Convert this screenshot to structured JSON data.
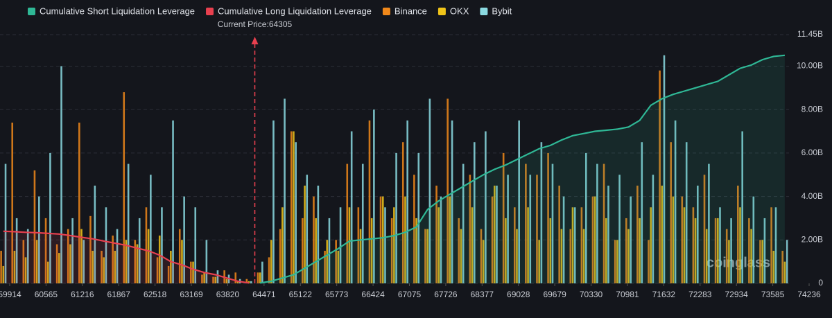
{
  "chart_data": {
    "type": "bar",
    "x": [
      59800,
      60000,
      60200,
      60400,
      60600,
      60800,
      61000,
      61200,
      61400,
      61600,
      61800,
      62000,
      62200,
      62400,
      62600,
      62800,
      63000,
      63200,
      63400,
      63600,
      63800,
      64000,
      64200,
      64400,
      64600,
      64800,
      65000,
      65200,
      65400,
      65600,
      65800,
      66000,
      66200,
      66400,
      66600,
      66800,
      67000,
      67200,
      67400,
      67600,
      67800,
      68000,
      68200,
      68400,
      68600,
      68800,
      69000,
      69200,
      69400,
      69600,
      69800,
      70000,
      70200,
      70400,
      70600,
      70800,
      71000,
      71200,
      71400,
      71600,
      71800,
      72000,
      72200,
      72400,
      72600,
      72800,
      73000,
      73200,
      73400,
      73600,
      73800
    ],
    "series": [
      {
        "name": "Cumulative Short Liquidation Leverage",
        "type": "line",
        "color": "#2fb896",
        "values": [
          null,
          null,
          null,
          null,
          null,
          null,
          null,
          null,
          null,
          null,
          null,
          null,
          null,
          null,
          null,
          null,
          null,
          null,
          null,
          null,
          null,
          null,
          null,
          0.02,
          0.1,
          0.25,
          0.4,
          0.7,
          1.0,
          1.3,
          1.6,
          1.95,
          2.0,
          2.05,
          2.1,
          2.2,
          2.35,
          2.6,
          3.4,
          3.8,
          4.1,
          4.4,
          4.7,
          5.0,
          5.25,
          5.45,
          5.7,
          5.95,
          6.2,
          6.35,
          6.6,
          6.8,
          6.9,
          7.0,
          7.05,
          7.1,
          7.2,
          7.5,
          8.2,
          8.5,
          8.7,
          8.85,
          9.0,
          9.15,
          9.3,
          9.6,
          9.9,
          10.05,
          10.3,
          10.45,
          10.5
        ]
      },
      {
        "name": "Cumulative Long Liquidation Leverage",
        "type": "line",
        "color": "#e8404f",
        "values": [
          2.4,
          2.38,
          2.35,
          2.33,
          2.3,
          2.27,
          2.2,
          2.12,
          2.05,
          1.95,
          1.85,
          1.75,
          1.62,
          1.5,
          1.3,
          1.0,
          0.85,
          0.65,
          0.5,
          0.4,
          0.25,
          0.1,
          0.02,
          null,
          null,
          null,
          null,
          null,
          null,
          null,
          null,
          null,
          null,
          null,
          null,
          null,
          null,
          null,
          null,
          null,
          null,
          null,
          null,
          null,
          null,
          null,
          null,
          null,
          null,
          null,
          null,
          null,
          null,
          null,
          null,
          null,
          null,
          null,
          null,
          null,
          null,
          null,
          null,
          null,
          null,
          null,
          null,
          null,
          null,
          null,
          null
        ]
      },
      {
        "name": "Binance",
        "type": "bar",
        "color": "#f0881a",
        "values": [
          1.5,
          7.4,
          2.0,
          5.2,
          3.0,
          1.8,
          2.5,
          7.4,
          3.1,
          1.5,
          2.2,
          8.8,
          2.0,
          3.5,
          1.2,
          0.8,
          2.5,
          1.0,
          0.4,
          0.3,
          0.6,
          0.5,
          0.2,
          0.5,
          1.2,
          2.5,
          7.0,
          3.0,
          4.0,
          1.5,
          2.0,
          5.5,
          3.5,
          7.5,
          4.0,
          3.0,
          6.5,
          5.0,
          2.5,
          4.5,
          8.5,
          3.0,
          5.0,
          2.5,
          4.0,
          6.0,
          3.5,
          5.5,
          5.0,
          6.0,
          4.5,
          2.5,
          3.5,
          4.0,
          5.5,
          2.0,
          3.0,
          4.5,
          2.0,
          9.8,
          6.5,
          4.0,
          3.5,
          5.0,
          3.0,
          2.5,
          4.5,
          3.0,
          2.0,
          3.5,
          1.5
        ]
      },
      {
        "name": "OKX",
        "type": "bar",
        "color": "#f0c419",
        "values": [
          0.8,
          1.5,
          1.2,
          2.0,
          1.0,
          1.4,
          1.8,
          2.5,
          1.5,
          1.2,
          1.5,
          2.0,
          1.8,
          2.5,
          2.2,
          1.5,
          2.0,
          1.0,
          0.5,
          0.3,
          0.2,
          0.1,
          0.1,
          0.5,
          2.0,
          3.5,
          7.0,
          4.5,
          3.0,
          2.0,
          1.5,
          3.5,
          2.5,
          3.0,
          4.0,
          3.5,
          4.0,
          3.0,
          2.5,
          3.5,
          4.0,
          2.5,
          3.5,
          2.0,
          4.5,
          3.0,
          2.5,
          3.5,
          2.0,
          3.0,
          2.5,
          3.5,
          2.5,
          4.0,
          3.0,
          2.0,
          2.5,
          3.0,
          3.5,
          4.5,
          4.0,
          3.5,
          3.0,
          2.5,
          3.0,
          2.0,
          3.5,
          2.5,
          2.0,
          1.5,
          1.0
        ]
      },
      {
        "name": "Bybit",
        "type": "bar",
        "color": "#8ad9e0",
        "values": [
          5.5,
          3.0,
          2.5,
          4.0,
          6.0,
          10.0,
          3.0,
          2.0,
          4.5,
          3.5,
          2.5,
          5.5,
          3.0,
          5.0,
          3.5,
          7.5,
          4.0,
          3.5,
          2.0,
          0.6,
          0.4,
          0.2,
          0.1,
          1.0,
          7.5,
          8.5,
          6.5,
          5.0,
          4.5,
          3.0,
          3.5,
          7.0,
          5.5,
          8.0,
          3.5,
          6.0,
          7.5,
          6.0,
          8.5,
          4.0,
          7.5,
          5.5,
          6.5,
          7.0,
          4.5,
          5.0,
          7.5,
          5.0,
          6.5,
          5.5,
          4.0,
          3.5,
          6.0,
          5.5,
          4.5,
          5.0,
          4.0,
          6.5,
          5.0,
          10.5,
          7.5,
          6.5,
          4.5,
          5.5,
          3.5,
          3.0,
          7.0,
          4.0,
          3.0,
          3.5,
          2.0
        ]
      }
    ],
    "xlim": [
      59740,
      74236
    ],
    "xticks": [
      59914,
      60565,
      61216,
      61867,
      62518,
      63169,
      63820,
      64471,
      65122,
      65773,
      66424,
      67075,
      67726,
      68377,
      69028,
      69679,
      70330,
      70981,
      71632,
      72283,
      72934,
      73585,
      74236
    ],
    "ylim": [
      0,
      11.45
    ],
    "yticks": [
      0,
      {
        "value": 2,
        "label": "2.00B"
      },
      {
        "value": 4,
        "label": "4.00B"
      },
      {
        "value": 6,
        "label": "6.00B"
      },
      {
        "value": 8,
        "label": "8.00B"
      },
      {
        "value": 10,
        "label": "10.00B"
      },
      {
        "value": 11.45,
        "label": "11.45B"
      }
    ],
    "grid": true,
    "annotations": [
      {
        "text": "Current Price:64305",
        "x": 64305
      }
    ],
    "watermark": "coinglass"
  }
}
